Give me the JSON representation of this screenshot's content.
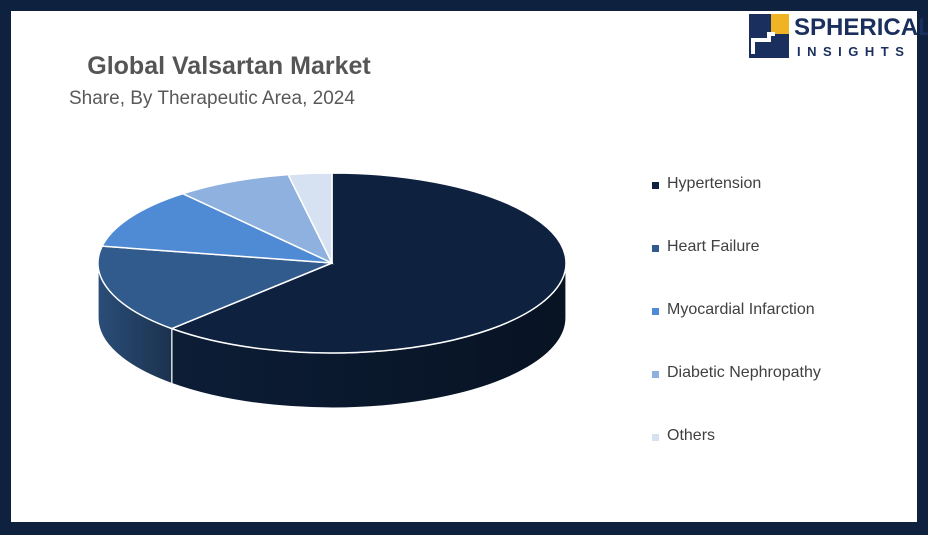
{
  "brand": {
    "name": "SPHERICAL",
    "tagline": "INSIGHTS",
    "color": "#1a2f5e"
  },
  "chart_data": {
    "type": "pie",
    "title": "Global Valsartan Market",
    "subtitle": "Share, By Therapeutic Area, 2024",
    "style": "3d",
    "legend_position": "right",
    "categories": [
      "Hypertension",
      "Heart Failure",
      "Myocardial Infarction",
      "Diabetic Nephropathy",
      "Others"
    ],
    "values": [
      62,
      16,
      11,
      8,
      3
    ],
    "unit": "%",
    "colors": [
      "#0e2240",
      "#315a8d",
      "#4f8ad4",
      "#8eb1e0",
      "#d6e2f1"
    ]
  }
}
